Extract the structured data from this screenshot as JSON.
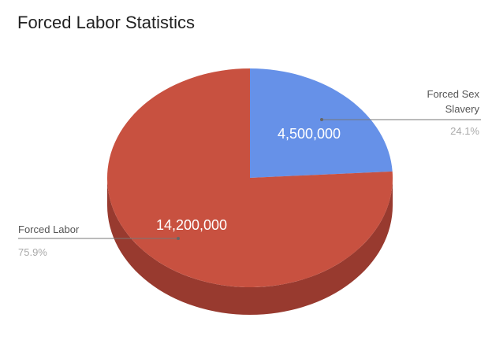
{
  "chart_data": {
    "type": "pie",
    "three_d": true,
    "title": "Forced Labor Statistics",
    "slices": [
      {
        "label": "Forced Sex Slavery",
        "label_lines": [
          "Forced Sex",
          "Slavery"
        ],
        "value": 4500000,
        "value_label": "4,500,000",
        "percent_label": "24.1%",
        "color": "#6691e8",
        "side_color": "#4a6fb8"
      },
      {
        "label": "Forced Labor",
        "label_lines": [
          "Forced Labor"
        ],
        "value": 14200000,
        "value_label": "14,200,000",
        "percent_label": "75.9%",
        "color": "#c85140",
        "side_color": "#983a2f"
      }
    ],
    "legend": "labeled slices"
  }
}
